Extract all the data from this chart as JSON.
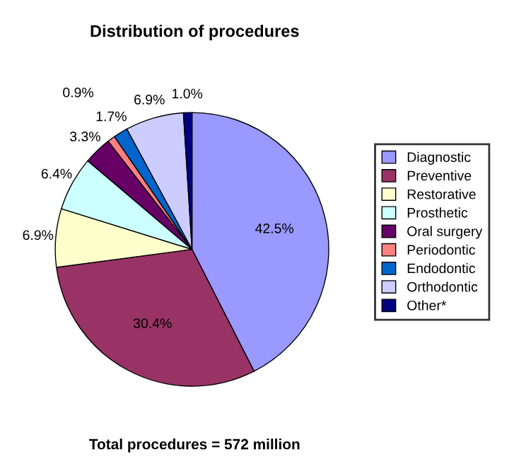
{
  "chart_data": {
    "type": "pie",
    "title": "Distribution of procedures",
    "categories": [
      "Diagnostic",
      "Preventive",
      "Restorative",
      "Prosthetic",
      "Oral surgery",
      "Periodontic",
      "Endodontic",
      "Orthodontic",
      "Other*"
    ],
    "values": [
      42.5,
      30.4,
      6.9,
      6.4,
      3.3,
      0.9,
      1.7,
      6.9,
      1.0
    ],
    "colors": [
      "#9999ff",
      "#993366",
      "#ffffcc",
      "#ccffff",
      "#660066",
      "#ff8080",
      "#0066cc",
      "#ccccff",
      "#000080"
    ],
    "value_labels": [
      "42.5%",
      "30.4%",
      "6.9%",
      "6.4%",
      "3.3%",
      "0.9%",
      "1.7%",
      "6.9%",
      "1.0%"
    ],
    "legend": "right",
    "annotations": [
      "Total procedures = 572 million"
    ]
  }
}
